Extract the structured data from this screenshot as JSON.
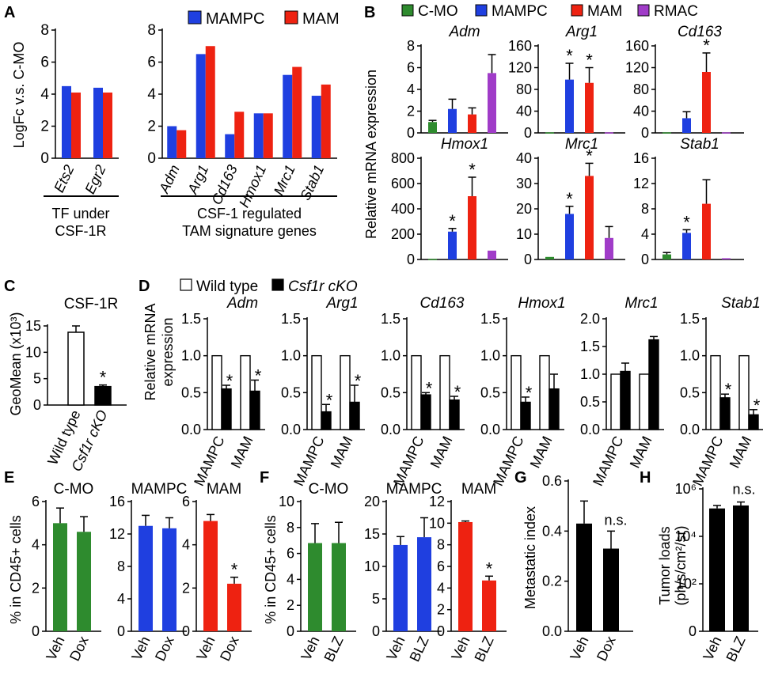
{
  "colors": {
    "cmo": "#2e8b2e",
    "mampc": "#1f3fe0",
    "mam": "#ee2211",
    "rmac": "#a03cc8",
    "black": "#000000",
    "white": "#ffffff"
  },
  "panel_labels": {
    "A": "A",
    "B": "B",
    "C": "C",
    "D": "D",
    "E": "E",
    "F": "F",
    "G": "G",
    "H": "H"
  },
  "legend_AB": {
    "cmo": "C-MO",
    "mampc": "MAMPC",
    "mam": "MAM",
    "rmac": "RMAC"
  },
  "legend_D": {
    "wt": "Wild type",
    "cko": "Csf1r cKO"
  },
  "star": "*",
  "ns": "n.s.",
  "chart_data": [
    {
      "id": "A1",
      "type": "bar",
      "ylabel": "LogFc v.s. C-MO",
      "ylim": [
        0,
        8
      ],
      "yticks": [
        "0",
        "2",
        "4",
        "6",
        "8"
      ],
      "categories": [
        "Ets2",
        "Egr2"
      ],
      "series": [
        {
          "name": "MAMPC",
          "color": "mampc",
          "values": [
            4.5,
            4.4
          ]
        },
        {
          "name": "MAM",
          "color": "mam",
          "values": [
            4.1,
            4.1
          ]
        }
      ],
      "group_caption": [
        "TF under",
        "CSF-1R"
      ]
    },
    {
      "id": "A2",
      "type": "bar",
      "ylim": [
        0,
        8
      ],
      "yticks": [
        "0",
        "2",
        "4",
        "6",
        "8"
      ],
      "categories": [
        "Adm",
        "Arg1",
        "Cd163",
        "Hmox1",
        "Mrc1",
        "Stab1"
      ],
      "series": [
        {
          "name": "MAMPC",
          "color": "mampc",
          "values": [
            2.0,
            6.5,
            1.5,
            2.8,
            5.2,
            3.9
          ]
        },
        {
          "name": "MAM",
          "color": "mam",
          "values": [
            1.75,
            7.0,
            2.9,
            2.8,
            5.7,
            4.6
          ]
        }
      ],
      "group_caption": [
        "CSF-1 regulated",
        "TAM signature genes"
      ]
    },
    {
      "id": "B_Adm",
      "type": "bar",
      "title": "Adm",
      "ylim": [
        0,
        8
      ],
      "yticks": [
        "0",
        "2",
        "4",
        "6",
        "8"
      ],
      "categories": [
        "C-MO",
        "MAMPC",
        "MAM",
        "RMAC"
      ],
      "colors": [
        "cmo",
        "mampc",
        "mam",
        "rmac"
      ],
      "values": [
        1.0,
        2.2,
        1.7,
        5.5
      ],
      "errors": [
        0.15,
        0.9,
        0.6,
        1.7
      ],
      "sig": [
        false,
        false,
        false,
        false
      ]
    },
    {
      "id": "B_Arg1",
      "type": "bar",
      "title": "Arg1",
      "ylim": [
        0,
        160
      ],
      "yticks": [
        "0",
        "40",
        "80",
        "120",
        "160"
      ],
      "categories": [
        "C-MO",
        "MAMPC",
        "MAM",
        "RMAC"
      ],
      "colors": [
        "cmo",
        "mampc",
        "mam",
        "rmac"
      ],
      "values": [
        1,
        98,
        92,
        1
      ],
      "errors": [
        0,
        30,
        28,
        0
      ],
      "sig": [
        false,
        true,
        true,
        false
      ]
    },
    {
      "id": "B_Cd163",
      "type": "bar",
      "title": "Cd163",
      "ylim": [
        0,
        160
      ],
      "yticks": [
        "0",
        "40",
        "80",
        "120",
        "160"
      ],
      "categories": [
        "C-MO",
        "MAMPC",
        "MAM",
        "RMAC"
      ],
      "colors": [
        "cmo",
        "mampc",
        "mam",
        "rmac"
      ],
      "values": [
        1,
        27,
        112,
        1
      ],
      "errors": [
        0,
        12,
        35,
        0
      ],
      "sig": [
        false,
        false,
        true,
        false
      ]
    },
    {
      "id": "B_Hmox1",
      "type": "bar",
      "title": "Hmox1",
      "ylim": [
        0,
        800
      ],
      "yticks": [
        "0",
        "200",
        "400",
        "600",
        "800"
      ],
      "categories": [
        "C-MO",
        "MAMPC",
        "MAM",
        "RMAC"
      ],
      "colors": [
        "cmo",
        "mampc",
        "mam",
        "rmac"
      ],
      "values": [
        5,
        220,
        500,
        70
      ],
      "errors": [
        0,
        25,
        150,
        0
      ],
      "sig": [
        false,
        true,
        true,
        false
      ]
    },
    {
      "id": "B_Mrc1",
      "type": "bar",
      "title": "Mrc1",
      "ylim": [
        0,
        40
      ],
      "yticks": [
        "0",
        "10",
        "20",
        "30",
        "40"
      ],
      "categories": [
        "C-MO",
        "MAMPC",
        "MAM",
        "RMAC"
      ],
      "colors": [
        "cmo",
        "mampc",
        "mam",
        "rmac"
      ],
      "values": [
        1,
        18,
        33,
        8.5
      ],
      "errors": [
        0,
        3,
        5,
        4.5
      ],
      "sig": [
        false,
        true,
        true,
        false
      ]
    },
    {
      "id": "B_Stab1",
      "type": "bar",
      "title": "Stab1",
      "ylim": [
        0,
        16
      ],
      "yticks": [
        "0",
        "4",
        "8",
        "12",
        "16"
      ],
      "categories": [
        "C-MO",
        "MAMPC",
        "MAM",
        "RMAC"
      ],
      "colors": [
        "cmo",
        "mampc",
        "mam",
        "rmac"
      ],
      "values": [
        0.8,
        4.2,
        8.8,
        0.2
      ],
      "errors": [
        0.3,
        0.5,
        3.8,
        0
      ],
      "sig": [
        false,
        true,
        false,
        false
      ]
    },
    {
      "id": "C",
      "type": "bar",
      "title": "CSF-1R",
      "ylabel": "GeoMean (x10³)",
      "ylim": [
        0,
        15
      ],
      "yticks": [
        "0",
        "5",
        "10",
        "15"
      ],
      "categories": [
        "Wild type",
        "Csf1r cKO"
      ],
      "fills": [
        "white",
        "black"
      ],
      "values": [
        13.8,
        3.5
      ],
      "errors": [
        1.2,
        0.3
      ],
      "sig": [
        false,
        true
      ]
    },
    {
      "id": "D_Adm",
      "type": "bar",
      "title": "Adm",
      "ylabel": "Relative mRNA expression",
      "ylim": [
        0,
        1.5
      ],
      "yticks": [
        "0.0",
        "0.5",
        "1.0",
        "1.5"
      ],
      "categories": [
        "MAMPC",
        "MAM"
      ],
      "series": [
        {
          "name": "Wild type",
          "values": [
            1.0,
            1.0
          ],
          "errors": [
            0,
            0
          ]
        },
        {
          "name": "Csf1r cKO",
          "values": [
            0.55,
            0.52
          ],
          "errors": [
            0.05,
            0.15
          ]
        }
      ],
      "sig": [
        true,
        true
      ]
    },
    {
      "id": "D_Arg1",
      "type": "bar",
      "title": "Arg1",
      "ylim": [
        0,
        1.5
      ],
      "yticks": [
        "0.0",
        "0.5",
        "1.0",
        "1.5"
      ],
      "categories": [
        "MAMPC",
        "MAM"
      ],
      "series": [
        {
          "name": "Wild type",
          "values": [
            1.0,
            1.0
          ],
          "errors": [
            0,
            0
          ]
        },
        {
          "name": "Csf1r cKO",
          "values": [
            0.24,
            0.37
          ],
          "errors": [
            0.1,
            0.23
          ]
        }
      ],
      "sig": [
        true,
        true
      ]
    },
    {
      "id": "D_Cd163",
      "type": "bar",
      "title": "Cd163",
      "ylim": [
        0,
        1.5
      ],
      "yticks": [
        "0.0",
        "0.5",
        "1.0",
        "1.5"
      ],
      "categories": [
        "MAMPC",
        "MAM"
      ],
      "series": [
        {
          "name": "Wild type",
          "values": [
            1.0,
            1.0
          ],
          "errors": [
            0,
            0
          ]
        },
        {
          "name": "Csf1r cKO",
          "values": [
            0.47,
            0.4
          ],
          "errors": [
            0.03,
            0.05
          ]
        }
      ],
      "sig": [
        true,
        true
      ]
    },
    {
      "id": "D_Hmox1",
      "type": "bar",
      "title": "Hmox1",
      "ylim": [
        0,
        1.5
      ],
      "yticks": [
        "0.0",
        "0.5",
        "1.0",
        "1.5"
      ],
      "categories": [
        "MAMPC",
        "MAM"
      ],
      "series": [
        {
          "name": "Wild type",
          "values": [
            1.0,
            1.0
          ],
          "errors": [
            0,
            0
          ]
        },
        {
          "name": "Csf1r cKO",
          "values": [
            0.37,
            0.55
          ],
          "errors": [
            0.07,
            0.2
          ]
        }
      ],
      "sig": [
        true,
        false
      ]
    },
    {
      "id": "D_Mrc1",
      "type": "bar",
      "title": "Mrc1",
      "ylim": [
        0,
        2.0
      ],
      "yticks": [
        "0.0",
        "0.5",
        "1.0",
        "1.5",
        "2.0"
      ],
      "categories": [
        "MAMPC",
        "MAM"
      ],
      "series": [
        {
          "name": "Wild type",
          "values": [
            1.0,
            1.0
          ],
          "errors": [
            0,
            0
          ]
        },
        {
          "name": "Csf1r cKO",
          "values": [
            1.05,
            1.62
          ],
          "errors": [
            0.15,
            0.06
          ]
        }
      ],
      "sig": [
        false,
        false
      ]
    },
    {
      "id": "D_Stab1",
      "type": "bar",
      "title": "Stab1",
      "ylim": [
        0,
        1.5
      ],
      "yticks": [
        "0.0",
        "0.5",
        "1.0",
        "1.5"
      ],
      "categories": [
        "MAMPC",
        "MAM"
      ],
      "series": [
        {
          "name": "Wild type",
          "values": [
            1.0,
            1.0
          ],
          "errors": [
            0,
            0
          ]
        },
        {
          "name": "Csf1r cKO",
          "values": [
            0.43,
            0.2
          ],
          "errors": [
            0.05,
            0.07
          ]
        }
      ],
      "sig": [
        true,
        true
      ]
    },
    {
      "id": "E_CMO",
      "type": "bar",
      "title": "C-MO",
      "ylabel": "% in CD45+ cells",
      "ylim": [
        0,
        6
      ],
      "yticks": [
        "0",
        "2",
        "4",
        "6"
      ],
      "categories": [
        "Veh",
        "Dox"
      ],
      "color": "cmo",
      "values": [
        5.0,
        4.6
      ],
      "errors": [
        0.7,
        0.7
      ],
      "sig": [
        false,
        false
      ]
    },
    {
      "id": "E_MAMPC",
      "type": "bar",
      "title": "MAMPC",
      "ylim": [
        0,
        16
      ],
      "yticks": [
        "0",
        "4",
        "8",
        "12",
        "16"
      ],
      "categories": [
        "Veh",
        "Dox"
      ],
      "color": "mampc",
      "values": [
        13.0,
        12.7
      ],
      "errors": [
        1.3,
        1.3
      ],
      "sig": [
        false,
        false
      ]
    },
    {
      "id": "E_MAM",
      "type": "bar",
      "title": "MAM",
      "ylim": [
        0,
        6
      ],
      "yticks": [
        "0",
        "2",
        "4",
        "6"
      ],
      "categories": [
        "Veh",
        "Dox"
      ],
      "color": "mam",
      "values": [
        5.1,
        2.2
      ],
      "errors": [
        0.3,
        0.3
      ],
      "sig": [
        false,
        true
      ]
    },
    {
      "id": "F_CMO",
      "type": "bar",
      "title": "C-MO",
      "ylabel": "% in CD45+ cells",
      "ylim": [
        0,
        10
      ],
      "yticks": [
        "0",
        "2",
        "4",
        "6",
        "8",
        "10"
      ],
      "categories": [
        "Veh",
        "BLZ"
      ],
      "color": "cmo",
      "values": [
        6.8,
        6.8
      ],
      "errors": [
        1.5,
        1.6
      ],
      "sig": [
        false,
        false
      ]
    },
    {
      "id": "F_MAMPC",
      "type": "bar",
      "title": "MAMPC",
      "ylim": [
        0,
        20
      ],
      "yticks": [
        "0",
        "5",
        "10",
        "15",
        "20"
      ],
      "categories": [
        "Veh",
        "BLZ"
      ],
      "color": "mampc",
      "values": [
        13.3,
        14.5
      ],
      "errors": [
        1.3,
        3.0
      ],
      "sig": [
        false,
        false
      ]
    },
    {
      "id": "F_MAM",
      "type": "bar",
      "title": "MAM",
      "ylim": [
        0,
        12
      ],
      "yticks": [
        "0",
        "2",
        "4",
        "6",
        "8",
        "10",
        "12"
      ],
      "categories": [
        "Veh",
        "BLZ"
      ],
      "color": "mam",
      "values": [
        10.1,
        4.7
      ],
      "errors": [
        0.1,
        0.4
      ],
      "sig": [
        false,
        true
      ]
    },
    {
      "id": "G",
      "type": "bar",
      "ylabel": "Metastatic index",
      "ylim": [
        0,
        0.6
      ],
      "yticks": [
        "0.0",
        "0.2",
        "0.4",
        "0.6"
      ],
      "categories": [
        "Veh",
        "Dox"
      ],
      "color": "black",
      "values": [
        0.43,
        0.33
      ],
      "errors": [
        0.09,
        0.07
      ],
      "ns": true
    },
    {
      "id": "H",
      "type": "bar",
      "ylabel": "Tumor loads",
      "ylabel2": "(ph/s/cm²/sr)",
      "scale": "log",
      "ylim": [
        1,
        1000000
      ],
      "yticks": [
        "0",
        "10²",
        "10⁴",
        "10⁶"
      ],
      "categories": [
        "Veh",
        "BLZ"
      ],
      "color": "black",
      "values": [
        150000,
        200000
      ],
      "errors_upper": [
        200000,
        280000
      ],
      "ns": true
    }
  ]
}
